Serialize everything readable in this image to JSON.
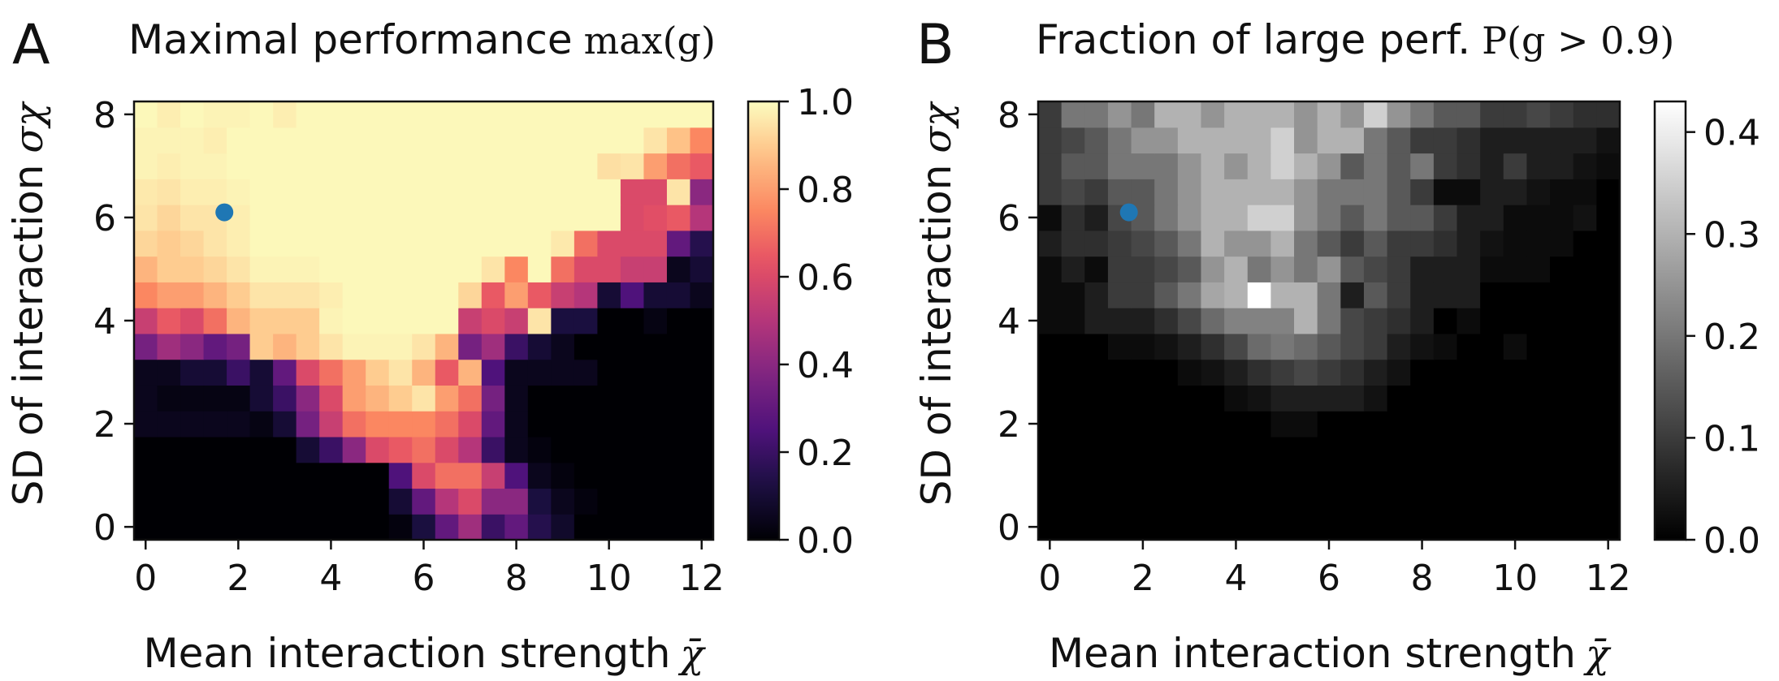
{
  "chart_data": [
    {
      "type": "heatmap",
      "panel_letter": "A",
      "title": "Maximal performance",
      "title_math": "max(g)",
      "xlabel": "Mean interaction strength",
      "xlabel_math": "χ̄",
      "ylabel": "SD of interaction",
      "ylabel_math": "σχ",
      "x_ticks": [
        "0",
        "2",
        "4",
        "6",
        "8",
        "10",
        "12"
      ],
      "y_ticks": [
        "0",
        "2",
        "4",
        "6",
        "8"
      ],
      "xlim": [
        -0.25,
        12.25
      ],
      "ylim": [
        -0.25,
        8.25
      ],
      "colormap": "magma",
      "colorbar_range": [
        0.0,
        1.0
      ],
      "colorbar_ticks": [
        "0.0",
        "0.2",
        "0.4",
        "0.6",
        "0.8",
        "1.0"
      ],
      "x_centers": [
        0,
        0.5,
        1,
        1.5,
        2,
        2.5,
        3,
        3.5,
        4,
        4.5,
        5,
        5.5,
        6,
        6.5,
        7,
        7.5,
        8,
        8.5,
        9,
        9.5,
        10,
        10.5,
        11,
        11.5,
        12
      ],
      "y_centers": [
        0,
        0.5,
        1,
        1.5,
        2,
        2.5,
        3,
        3.5,
        4,
        4.5,
        5,
        5.5,
        6,
        6.5,
        7,
        7.5,
        8
      ],
      "values": [
        [
          0.0,
          0.0,
          0.0,
          0.0,
          0.0,
          0.0,
          0.0,
          0.0,
          0.0,
          0.0,
          0.0,
          0.02,
          0.12,
          0.3,
          0.45,
          0.2,
          0.3,
          0.15,
          0.08,
          0.0,
          0.0,
          0.0,
          0.0,
          0.0,
          0.0
        ],
        [
          0.0,
          0.0,
          0.0,
          0.0,
          0.0,
          0.0,
          0.0,
          0.0,
          0.0,
          0.0,
          0.0,
          0.1,
          0.3,
          0.5,
          0.6,
          0.4,
          0.4,
          0.12,
          0.05,
          0.02,
          0.0,
          0.0,
          0.0,
          0.0,
          0.0
        ],
        [
          0.0,
          0.0,
          0.0,
          0.0,
          0.0,
          0.0,
          0.0,
          0.0,
          0.0,
          0.0,
          0.0,
          0.25,
          0.6,
          0.7,
          0.7,
          0.55,
          0.25,
          0.05,
          0.02,
          0.0,
          0.0,
          0.0,
          0.0,
          0.0,
          0.0
        ],
        [
          0.0,
          0.0,
          0.0,
          0.0,
          0.0,
          0.0,
          0.0,
          0.1,
          0.2,
          0.4,
          0.6,
          0.65,
          0.7,
          0.6,
          0.5,
          0.2,
          0.05,
          0.02,
          0.0,
          0.0,
          0.0,
          0.0,
          0.0,
          0.0,
          0.0
        ],
        [
          0.05,
          0.05,
          0.05,
          0.05,
          0.05,
          0.03,
          0.1,
          0.35,
          0.55,
          0.7,
          0.75,
          0.75,
          0.75,
          0.7,
          0.6,
          0.3,
          0.05,
          0.0,
          0.0,
          0.0,
          0.0,
          0.0,
          0.0,
          0.0,
          0.0
        ],
        [
          0.05,
          0.03,
          0.03,
          0.03,
          0.03,
          0.1,
          0.2,
          0.4,
          0.6,
          0.8,
          0.85,
          0.9,
          0.95,
          0.8,
          0.7,
          0.35,
          0.05,
          0.0,
          0.0,
          0.0,
          0.0,
          0.0,
          0.0,
          0.0,
          0.0
        ],
        [
          0.05,
          0.05,
          0.1,
          0.1,
          0.2,
          0.1,
          0.3,
          0.6,
          0.7,
          0.8,
          0.9,
          0.95,
          0.85,
          0.65,
          0.85,
          0.25,
          0.05,
          0.05,
          0.05,
          0.05,
          0.0,
          0.0,
          0.0,
          0.0,
          0.0
        ],
        [
          0.35,
          0.45,
          0.4,
          0.3,
          0.35,
          0.9,
          0.85,
          0.9,
          0.95,
          0.98,
          0.98,
          0.98,
          0.95,
          0.85,
          0.35,
          0.45,
          0.2,
          0.1,
          0.05,
          0.0,
          0.0,
          0.0,
          0.0,
          0.0,
          0.0
        ],
        [
          0.55,
          0.65,
          0.6,
          0.7,
          0.85,
          0.9,
          0.9,
          0.9,
          0.98,
          0.99,
          0.99,
          0.99,
          0.99,
          0.99,
          0.55,
          0.6,
          0.55,
          0.95,
          0.12,
          0.12,
          0.0,
          0.0,
          0.03,
          0.0,
          0.0
        ],
        [
          0.75,
          0.8,
          0.8,
          0.85,
          0.9,
          0.95,
          0.95,
          0.95,
          0.97,
          0.99,
          0.99,
          0.99,
          0.99,
          0.99,
          0.92,
          0.65,
          0.8,
          0.65,
          0.55,
          0.5,
          0.1,
          0.25,
          0.1,
          0.1,
          0.05
        ],
        [
          0.85,
          0.9,
          0.9,
          0.92,
          0.95,
          0.98,
          0.98,
          0.98,
          0.99,
          0.99,
          0.99,
          0.99,
          0.99,
          0.99,
          0.99,
          0.95,
          0.75,
          0.99,
          0.7,
          0.6,
          0.6,
          0.55,
          0.55,
          0.05,
          0.1
        ],
        [
          0.92,
          0.9,
          0.92,
          0.95,
          0.97,
          0.99,
          0.99,
          0.99,
          0.99,
          0.99,
          0.99,
          0.99,
          0.99,
          0.99,
          0.99,
          0.99,
          0.99,
          0.99,
          0.96,
          0.7,
          0.6,
          0.6,
          0.6,
          0.3,
          0.15
        ],
        [
          0.95,
          0.92,
          0.95,
          0.95,
          0.97,
          0.99,
          0.99,
          0.99,
          0.99,
          0.99,
          0.99,
          0.99,
          0.99,
          0.99,
          0.99,
          0.99,
          0.99,
          0.99,
          0.99,
          0.99,
          0.99,
          0.6,
          0.62,
          0.65,
          0.5
        ],
        [
          0.96,
          0.95,
          0.97,
          0.97,
          0.98,
          0.99,
          0.99,
          0.99,
          0.99,
          0.99,
          0.99,
          0.99,
          0.99,
          0.99,
          0.99,
          0.99,
          0.99,
          0.99,
          0.99,
          0.99,
          0.99,
          0.6,
          0.6,
          0.95,
          0.4
        ],
        [
          0.98,
          0.97,
          0.98,
          0.98,
          0.99,
          0.99,
          0.99,
          0.99,
          0.99,
          0.99,
          0.99,
          0.99,
          0.99,
          0.99,
          0.99,
          0.99,
          0.99,
          0.99,
          0.99,
          0.99,
          0.94,
          0.95,
          0.8,
          0.7,
          0.65
        ],
        [
          0.98,
          0.98,
          0.98,
          0.97,
          0.99,
          0.99,
          0.99,
          0.99,
          0.99,
          0.99,
          0.99,
          0.99,
          0.99,
          0.99,
          0.99,
          0.99,
          0.99,
          0.99,
          0.99,
          0.99,
          0.99,
          0.99,
          0.95,
          0.88,
          0.75
        ],
        [
          0.99,
          0.97,
          0.99,
          0.98,
          0.98,
          0.99,
          0.97,
          0.99,
          0.99,
          0.99,
          0.99,
          0.99,
          0.99,
          0.99,
          0.99,
          0.99,
          0.99,
          0.99,
          0.99,
          0.99,
          0.99,
          0.99,
          0.99,
          0.99,
          0.99
        ]
      ],
      "marker": {
        "x": 1.7,
        "y": 6.1,
        "color": "#1f77b4"
      }
    },
    {
      "type": "heatmap",
      "panel_letter": "B",
      "title": "Fraction of large perf.",
      "title_math": "P(g > 0.9)",
      "xlabel": "Mean interaction strength",
      "xlabel_math": "χ̄",
      "ylabel": "SD of interaction",
      "ylabel_math": "σχ",
      "x_ticks": [
        "0",
        "2",
        "4",
        "6",
        "8",
        "10",
        "12"
      ],
      "y_ticks": [
        "0",
        "2",
        "4",
        "6",
        "8"
      ],
      "xlim": [
        -0.25,
        12.25
      ],
      "ylim": [
        -0.25,
        8.25
      ],
      "colormap": "gray",
      "colorbar_range": [
        0.0,
        0.43
      ],
      "colorbar_ticks": [
        "0.0",
        "0.1",
        "0.2",
        "0.3",
        "0.4"
      ],
      "x_centers": [
        0,
        0.5,
        1,
        1.5,
        2,
        2.5,
        3,
        3.5,
        4,
        4.5,
        5,
        5.5,
        6,
        6.5,
        7,
        7.5,
        8,
        8.5,
        9,
        9.5,
        10,
        10.5,
        11,
        11.5,
        12
      ],
      "y_centers": [
        0,
        0.5,
        1,
        1.5,
        2,
        2.5,
        3,
        3.5,
        4,
        4.5,
        5,
        5.5,
        6,
        6.5,
        7,
        7.5,
        8
      ],
      "values": [
        [
          0,
          0,
          0,
          0,
          0,
          0,
          0,
          0,
          0,
          0,
          0,
          0,
          0,
          0,
          0,
          0,
          0,
          0,
          0,
          0,
          0,
          0,
          0,
          0,
          0
        ],
        [
          0,
          0,
          0,
          0,
          0,
          0,
          0,
          0,
          0,
          0,
          0,
          0,
          0,
          0,
          0,
          0,
          0,
          0,
          0,
          0,
          0,
          0,
          0,
          0,
          0
        ],
        [
          0,
          0,
          0,
          0,
          0,
          0,
          0,
          0,
          0,
          0,
          0,
          0,
          0,
          0,
          0,
          0,
          0,
          0,
          0,
          0,
          0,
          0,
          0,
          0,
          0
        ],
        [
          0,
          0,
          0,
          0,
          0,
          0,
          0,
          0,
          0,
          0,
          0,
          0,
          0,
          0,
          0,
          0,
          0,
          0,
          0,
          0,
          0,
          0,
          0,
          0,
          0
        ],
        [
          0,
          0,
          0,
          0,
          0,
          0,
          0,
          0,
          0,
          0,
          0.02,
          0.02,
          0,
          0,
          0,
          0,
          0,
          0,
          0,
          0,
          0,
          0,
          0,
          0,
          0
        ],
        [
          0,
          0,
          0,
          0,
          0,
          0,
          0,
          0,
          0.02,
          0.03,
          0.05,
          0.05,
          0.05,
          0.05,
          0.03,
          0,
          0,
          0,
          0,
          0,
          0,
          0,
          0,
          0,
          0
        ],
        [
          0,
          0,
          0,
          0,
          0,
          0,
          0.02,
          0.03,
          0.05,
          0.08,
          0.1,
          0.12,
          0.1,
          0.08,
          0.05,
          0.03,
          0,
          0,
          0,
          0,
          0,
          0,
          0,
          0,
          0
        ],
        [
          0,
          0,
          0,
          0.02,
          0.02,
          0.03,
          0.05,
          0.08,
          0.12,
          0.18,
          0.2,
          0.18,
          0.15,
          0.12,
          0.1,
          0.05,
          0.03,
          0.02,
          0,
          0,
          0.02,
          0,
          0,
          0,
          0
        ],
        [
          0.02,
          0.02,
          0.05,
          0.05,
          0.05,
          0.08,
          0.12,
          0.18,
          0.22,
          0.22,
          0.22,
          0.3,
          0.2,
          0.12,
          0.1,
          0.08,
          0.05,
          0,
          0.02,
          0,
          0,
          0,
          0,
          0,
          0
        ],
        [
          0.02,
          0.02,
          0.05,
          0.1,
          0.1,
          0.15,
          0.2,
          0.28,
          0.3,
          0.43,
          0.3,
          0.3,
          0.2,
          0.05,
          0.15,
          0.1,
          0.05,
          0.05,
          0.05,
          0,
          0,
          0,
          0,
          0,
          0
        ],
        [
          0.02,
          0.05,
          0.02,
          0.1,
          0.1,
          0.12,
          0.15,
          0.25,
          0.3,
          0.2,
          0.25,
          0.2,
          0.25,
          0.15,
          0.12,
          0.1,
          0.05,
          0.05,
          0.05,
          0.02,
          0.02,
          0.02,
          0,
          0,
          0
        ],
        [
          0.05,
          0.08,
          0.08,
          0.1,
          0.12,
          0.15,
          0.2,
          0.3,
          0.25,
          0.25,
          0.3,
          0.2,
          0.15,
          0.1,
          0.15,
          0.1,
          0.1,
          0.08,
          0.05,
          0.03,
          0.02,
          0.02,
          0.02,
          0,
          0
        ],
        [
          0.02,
          0.08,
          0.05,
          0.12,
          0.15,
          0.2,
          0.25,
          0.3,
          0.3,
          0.35,
          0.35,
          0.25,
          0.2,
          0.15,
          0.2,
          0.15,
          0.15,
          0.1,
          0.05,
          0.05,
          0.02,
          0.02,
          0.02,
          0.03,
          0
        ],
        [
          0.1,
          0.12,
          0.1,
          0.15,
          0.15,
          0.2,
          0.25,
          0.3,
          0.3,
          0.3,
          0.3,
          0.25,
          0.2,
          0.2,
          0.2,
          0.15,
          0.1,
          0.02,
          0.02,
          0.05,
          0.05,
          0.03,
          0.02,
          0.02,
          0
        ],
        [
          0.1,
          0.15,
          0.15,
          0.2,
          0.2,
          0.2,
          0.25,
          0.3,
          0.25,
          0.3,
          0.35,
          0.3,
          0.25,
          0.15,
          0.2,
          0.15,
          0.2,
          0.1,
          0.08,
          0.05,
          0.1,
          0.05,
          0.05,
          0.03,
          0.02
        ],
        [
          0.1,
          0.12,
          0.15,
          0.2,
          0.25,
          0.25,
          0.3,
          0.3,
          0.3,
          0.3,
          0.35,
          0.25,
          0.3,
          0.3,
          0.2,
          0.15,
          0.1,
          0.1,
          0.08,
          0.05,
          0.05,
          0.05,
          0.05,
          0.05,
          0.03
        ],
        [
          0.1,
          0.2,
          0.2,
          0.25,
          0.2,
          0.3,
          0.3,
          0.25,
          0.3,
          0.3,
          0.3,
          0.25,
          0.3,
          0.25,
          0.35,
          0.25,
          0.2,
          0.15,
          0.15,
          0.1,
          0.1,
          0.12,
          0.1,
          0.08,
          0.08
        ]
      ],
      "marker": {
        "x": 1.7,
        "y": 6.1,
        "color": "#1f77b4"
      }
    }
  ]
}
